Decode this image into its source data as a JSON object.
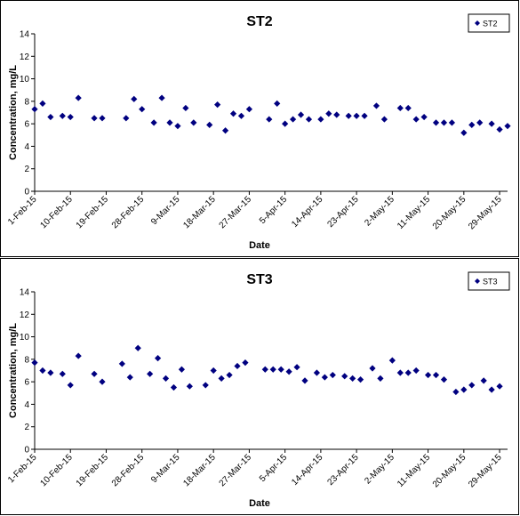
{
  "chart_data": [
    {
      "type": "scatter",
      "title": "ST2",
      "xlabel": "Date",
      "ylabel": "Concentration, mg/L",
      "ylim": [
        0,
        14
      ],
      "yticks": [
        "0",
        "2",
        "4",
        "6",
        "8",
        "10",
        "12",
        "14"
      ],
      "xticks": [
        "1-Feb-15",
        "10-Feb-15",
        "19-Feb-15",
        "28-Feb-15",
        "9-Mar-15",
        "18-Mar-15",
        "27-Mar-15",
        "5-Apr-15",
        "14-Apr-15",
        "23-Apr-15",
        "2-May-15",
        "11-May-15",
        "20-May-15",
        "29-May-15"
      ],
      "xlim": [
        "2015-02-01",
        "2015-05-31"
      ],
      "legend_position": "top-right",
      "marker_color": "#000080",
      "series": [
        {
          "name": "ST2",
          "x": [
            "2015-02-01",
            "2015-02-03",
            "2015-02-05",
            "2015-02-08",
            "2015-02-10",
            "2015-02-12",
            "2015-02-16",
            "2015-02-18",
            "2015-02-24",
            "2015-02-26",
            "2015-02-28",
            "2015-03-03",
            "2015-03-05",
            "2015-03-07",
            "2015-03-09",
            "2015-03-11",
            "2015-03-13",
            "2015-03-17",
            "2015-03-19",
            "2015-03-21",
            "2015-03-23",
            "2015-03-25",
            "2015-03-27",
            "2015-04-01",
            "2015-04-03",
            "2015-04-05",
            "2015-04-07",
            "2015-04-09",
            "2015-04-11",
            "2015-04-14",
            "2015-04-16",
            "2015-04-18",
            "2015-04-21",
            "2015-04-23",
            "2015-04-25",
            "2015-04-28",
            "2015-04-30",
            "2015-05-04",
            "2015-05-06",
            "2015-05-08",
            "2015-05-10",
            "2015-05-13",
            "2015-05-15",
            "2015-05-17",
            "2015-05-20",
            "2015-05-22",
            "2015-05-24",
            "2015-05-27",
            "2015-05-29",
            "2015-05-31"
          ],
          "y": [
            7.3,
            7.8,
            6.6,
            6.7,
            6.6,
            8.3,
            6.5,
            6.5,
            6.5,
            8.2,
            7.3,
            6.1,
            8.3,
            6.1,
            5.8,
            7.4,
            6.1,
            5.9,
            7.7,
            5.4,
            6.9,
            6.7,
            7.3,
            6.4,
            7.8,
            6.0,
            6.4,
            6.8,
            6.4,
            6.4,
            6.9,
            6.8,
            6.7,
            6.7,
            6.7,
            7.6,
            6.4,
            7.4,
            7.4,
            6.4,
            6.6,
            6.1,
            6.1,
            6.1,
            5.2,
            5.9,
            6.1,
            6.0,
            5.5,
            5.8
          ]
        }
      ]
    },
    {
      "type": "scatter",
      "title": "ST3",
      "xlabel": "Date",
      "ylabel": "Concentration, mg/L",
      "ylim": [
        0,
        14
      ],
      "yticks": [
        "0",
        "2",
        "4",
        "6",
        "8",
        "10",
        "12",
        "14"
      ],
      "xticks": [
        "1-Feb-15",
        "10-Feb-15",
        "19-Feb-15",
        "28-Feb-15",
        "9-Mar-15",
        "18-Mar-15",
        "27-Mar-15",
        "5-Apr-15",
        "14-Apr-15",
        "23-Apr-15",
        "2-May-15",
        "11-May-15",
        "20-May-15",
        "29-May-15"
      ],
      "xlim": [
        "2015-02-01",
        "2015-05-31"
      ],
      "legend_position": "top-right",
      "marker_color": "#000080",
      "series": [
        {
          "name": "ST3",
          "x": [
            "2015-02-01",
            "2015-02-03",
            "2015-02-05",
            "2015-02-08",
            "2015-02-10",
            "2015-02-12",
            "2015-02-16",
            "2015-02-18",
            "2015-02-23",
            "2015-02-25",
            "2015-02-27",
            "2015-03-02",
            "2015-03-04",
            "2015-03-06",
            "2015-03-08",
            "2015-03-10",
            "2015-03-12",
            "2015-03-16",
            "2015-03-18",
            "2015-03-20",
            "2015-03-22",
            "2015-03-24",
            "2015-03-26",
            "2015-03-31",
            "2015-04-02",
            "2015-04-04",
            "2015-04-06",
            "2015-04-08",
            "2015-04-10",
            "2015-04-13",
            "2015-04-15",
            "2015-04-17",
            "2015-04-20",
            "2015-04-22",
            "2015-04-24",
            "2015-04-27",
            "2015-04-29",
            "2015-05-02",
            "2015-05-04",
            "2015-05-06",
            "2015-05-08",
            "2015-05-11",
            "2015-05-13",
            "2015-05-15",
            "2015-05-18",
            "2015-05-20",
            "2015-05-22",
            "2015-05-25",
            "2015-05-27",
            "2015-05-29"
          ],
          "y": [
            7.7,
            7.0,
            6.8,
            6.7,
            5.7,
            8.3,
            6.7,
            6.0,
            7.6,
            6.4,
            9.0,
            6.7,
            8.1,
            6.3,
            5.5,
            7.1,
            5.6,
            5.7,
            7.0,
            6.3,
            6.6,
            7.4,
            7.7,
            7.1,
            7.1,
            7.1,
            6.9,
            7.3,
            6.1,
            6.8,
            6.4,
            6.6,
            6.5,
            6.3,
            6.2,
            7.2,
            6.3,
            7.9,
            6.8,
            6.8,
            7.0,
            6.6,
            6.6,
            6.2,
            5.1,
            5.3,
            5.7,
            6.1,
            5.3,
            5.6
          ]
        }
      ]
    }
  ]
}
